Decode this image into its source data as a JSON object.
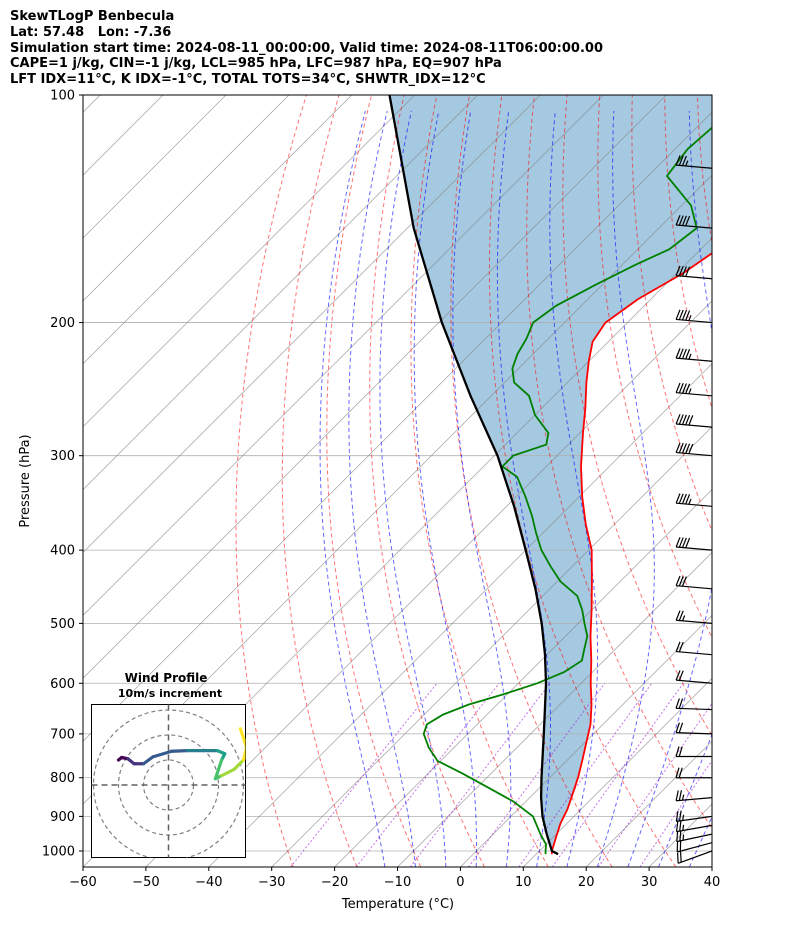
{
  "header": {
    "line1": "SkewTLogP Benbecula",
    "line2": "Lat: 57.48   Lon: -7.36",
    "line3": "Simulation start time: 2024-08-11_00:00:00, Valid time: 2024-08-11T06:00:00.00",
    "line4": "CAPE=1 j/kg, CIN=-1 j/kg, LCL=985 hPa, LFC=987 hPa, EQ=907 hPa",
    "line5": "LFT IDX=11°C, K IDX=-1°C, TOTAL TOTS=34°C, SHWTR_IDX=12°C"
  },
  "chart_data": {
    "type": "line",
    "xlabel": "Temperature (°C)",
    "ylabel": "Pressure (hPa)",
    "xlim": [
      -60,
      40
    ],
    "ylim": [
      1050,
      100
    ],
    "yscale": "log",
    "grid": true,
    "x_ticks": [
      -60,
      -50,
      -40,
      -30,
      -20,
      -10,
      0,
      10,
      20,
      30,
      40
    ],
    "x_tick_labels": [
      "−60",
      "−50",
      "−40",
      "−30",
      "−20",
      "−10",
      "0",
      "10",
      "20",
      "30",
      "40"
    ],
    "y_ticks": [
      1000,
      900,
      800,
      700,
      600,
      500,
      400,
      300,
      200,
      100
    ],
    "y_tick_labels": [
      "1000",
      "900",
      "800",
      "700",
      "600",
      "500",
      "400",
      "300",
      "200",
      "100"
    ],
    "colors": {
      "temperature": "#ff0000",
      "dewpoint": "#008000",
      "parcel": "#000000",
      "cape_fill": "#1f77b4",
      "dry_adiabat": "#ff0000",
      "moist_adiabat": "#0000ff",
      "mixing_ratio": "#9400d3",
      "isotherm": "#808080"
    },
    "temperature_profile": {
      "pressure": [
        1010,
        1000,
        960,
        920,
        880,
        840,
        800,
        760,
        720,
        680,
        640,
        600,
        560,
        520,
        480,
        440,
        400,
        370,
        340,
        310,
        280,
        260,
        240,
        225,
        212,
        200,
        186,
        172,
        158,
        145,
        133,
        122,
        111,
        100
      ],
      "temp": [
        12.5,
        12.0,
        10.5,
        9.0,
        7.8,
        6.2,
        4.5,
        2.5,
        0.3,
        -2.0,
        -5.0,
        -8.5,
        -12.0,
        -16.0,
        -20.0,
        -24.5,
        -29.5,
        -34.5,
        -39.5,
        -44.5,
        -49.5,
        -53.0,
        -57.0,
        -60.0,
        -62.5,
        -63.5,
        -62.0,
        -59.0,
        -57.0,
        -54.0,
        -52.0,
        -51.5,
        -50.0,
        -48.5
      ]
    },
    "dewpoint_profile": {
      "pressure": [
        1010,
        1000,
        980,
        950,
        900,
        860,
        820,
        790,
        760,
        730,
        700,
        680,
        660,
        640,
        620,
        600,
        580,
        560,
        540,
        520,
        500,
        480,
        460,
        440,
        420,
        400,
        380,
        360,
        340,
        320,
        310,
        300,
        290,
        280,
        265,
        250,
        240,
        230,
        220,
        210,
        200,
        190,
        178,
        168,
        160,
        150,
        140,
        128,
        118,
        110,
        100
      ],
      "dewp": [
        11.5,
        11.0,
        10.0,
        7.5,
        3.5,
        -2.0,
        -9.0,
        -14.5,
        -20.5,
        -24.0,
        -27.0,
        -28.0,
        -27.0,
        -24.5,
        -20.5,
        -17.0,
        -14.5,
        -13.5,
        -15.0,
        -16.5,
        -19.0,
        -21.5,
        -24.5,
        -29.5,
        -33.5,
        -37.5,
        -41.0,
        -44.5,
        -48.5,
        -53.0,
        -57.0,
        -57.0,
        -53.5,
        -55.0,
        -60.0,
        -64.0,
        -68.5,
        -71.0,
        -72.5,
        -73.5,
        -75.0,
        -74.0,
        -71.0,
        -68.0,
        -65.0,
        -64.0,
        -68.5,
        -77.0,
        -78.0,
        -77.5,
        -75.0
      ]
    },
    "parcel_profile": {
      "pressure": [
        1010,
        1000,
        950,
        900,
        850,
        800,
        750,
        700,
        650,
        600,
        550,
        500,
        450,
        400,
        350,
        300,
        250,
        200,
        150,
        100
      ],
      "temp": [
        13.5,
        12.0,
        8.5,
        5.0,
        1.8,
        -1.3,
        -4.5,
        -7.9,
        -11.6,
        -15.6,
        -20.3,
        -25.8,
        -32.3,
        -40.0,
        -48.8,
        -59.5,
        -73.3,
        -89.5,
        -109.0,
        -134.0
      ]
    },
    "wind_barbs": {
      "pressure": [
        1000,
        975,
        950,
        925,
        900,
        850,
        800,
        750,
        700,
        650,
        600,
        550,
        500,
        450,
        400,
        350,
        300,
        275,
        250,
        225,
        200,
        175,
        150,
        125,
        100
      ],
      "direction_deg": [
        250,
        255,
        258,
        260,
        262,
        265,
        270,
        270,
        272,
        272,
        275,
        275,
        275,
        275,
        275,
        275,
        275,
        275,
        275,
        275,
        275,
        275,
        275,
        275,
        275
      ],
      "speed_kt": [
        20,
        22,
        25,
        25,
        25,
        25,
        22,
        22,
        20,
        20,
        20,
        22,
        25,
        30,
        40,
        45,
        50,
        50,
        45,
        45,
        45,
        40,
        40,
        35,
        30
      ]
    },
    "wind_profile_inset": {
      "title": "Wind Profile",
      "subtitle": "10m/s increment",
      "rings": 3,
      "u": [
        -8.0,
        -7.5,
        -6.5,
        -5.5,
        -4.0,
        -2.5,
        0.5,
        3.0,
        5.5,
        7.8,
        9.0,
        8.5,
        8.0,
        7.5,
        8.5,
        10.5,
        12.0,
        12.5,
        11.5
      ],
      "v": [
        4.0,
        4.4,
        4.2,
        3.4,
        3.4,
        4.5,
        5.4,
        5.5,
        5.5,
        5.5,
        5.0,
        4.0,
        2.5,
        1.0,
        1.5,
        2.5,
        4.0,
        6.0,
        9.0
      ]
    }
  }
}
